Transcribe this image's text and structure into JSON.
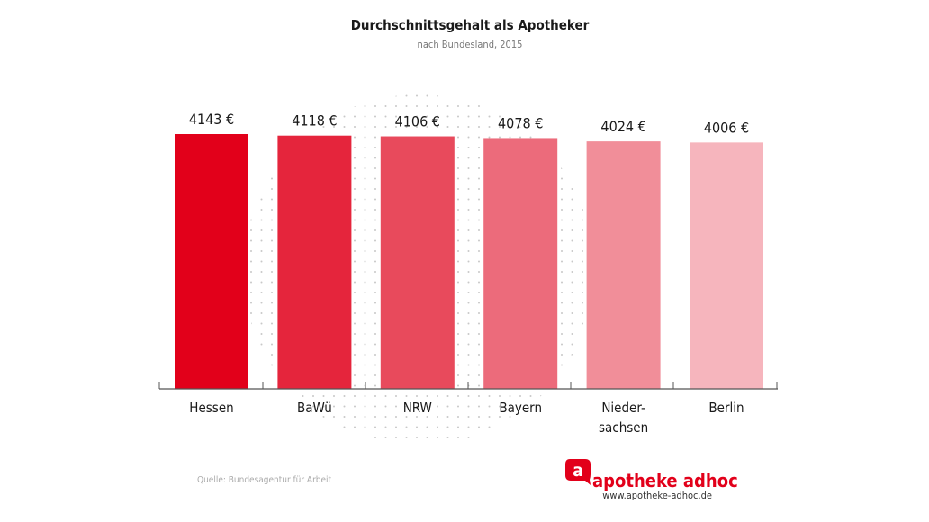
{
  "chart_data": {
    "type": "bar",
    "title": "Durchschnittsgehalt als Apotheker",
    "subtitle": "nach Bundesland, 2015",
    "categories": [
      "Hessen",
      "BaWü",
      "NRW",
      "Bayern",
      "Nieder-\nsachsen",
      "Berlin"
    ],
    "values": [
      4143,
      4118,
      4106,
      4078,
      4024,
      4006
    ],
    "value_labels": [
      "4143 €",
      "4118 €",
      "4106 €",
      "4078 €",
      "4024 €",
      "4006 €"
    ],
    "colors": [
      "#e2001a",
      "#e5253c",
      "#e84a5c",
      "#ec6b7b",
      "#f18e99",
      "#f6b5bd"
    ],
    "unit": "€",
    "ylim": [
      0,
      4143
    ],
    "grid": false,
    "xlabel": "",
    "ylabel": ""
  },
  "footer": {
    "source": "Quelle: Bundesagentur für Arbeit",
    "brand": "apotheke adhoc",
    "brand_logo_letter": "a",
    "url": "www.apotheke-adhoc.de",
    "brand_color": "#e2001a"
  }
}
